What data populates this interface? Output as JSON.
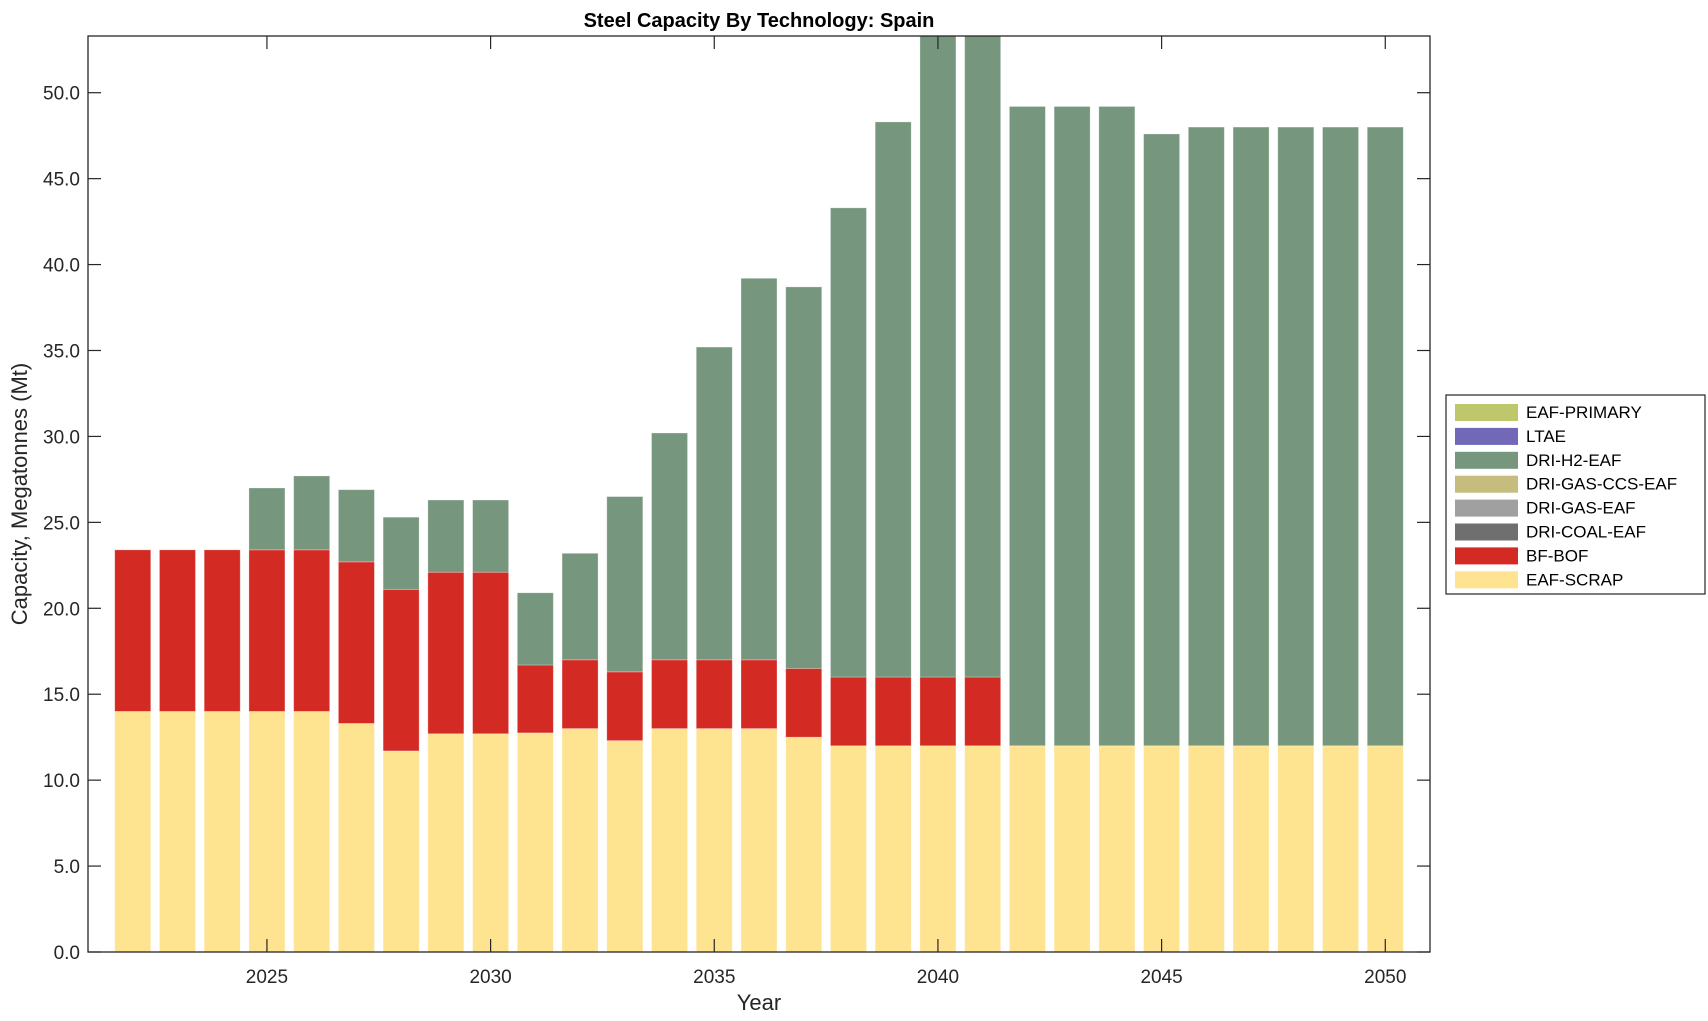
{
  "chart_data": {
    "type": "bar",
    "stacked": true,
    "title": "Steel Capacity By Technology: Spain",
    "xlabel": "Year",
    "ylabel": "Capacity, Megatonnes (Mt)",
    "xlim": [
      2021,
      2051
    ],
    "ylim": [
      0,
      53.3
    ],
    "grid": false,
    "legend_position": "outside-right",
    "x": [
      2022,
      2023,
      2024,
      2025,
      2026,
      2027,
      2028,
      2029,
      2030,
      2031,
      2032,
      2033,
      2034,
      2035,
      2036,
      2037,
      2038,
      2039,
      2040,
      2041,
      2042,
      2043,
      2044,
      2045,
      2046,
      2047,
      2048,
      2049,
      2050
    ],
    "x_ticks": [
      2025,
      2030,
      2035,
      2040,
      2045,
      2050
    ],
    "x_tick_labels": [
      "2025",
      "2030",
      "2035",
      "2040",
      "2045",
      "2050"
    ],
    "y_ticks": [
      0,
      5,
      10,
      15,
      20,
      25,
      30,
      35,
      40,
      45,
      50
    ],
    "y_tick_labels": [
      "0.0",
      "5.0",
      "10.0",
      "15.0",
      "20.0",
      "25.0",
      "30.0",
      "35.0",
      "40.0",
      "45.0",
      "50.0"
    ],
    "series": [
      {
        "name": "EAF-SCRAP",
        "color": "#fee391",
        "values": [
          14,
          14,
          14,
          14,
          14,
          13.3,
          11.7,
          12.7,
          12.7,
          12.75,
          13,
          12.3,
          13,
          13,
          13,
          12.5,
          12,
          12,
          12,
          12,
          12,
          12,
          12,
          12,
          12,
          12,
          12,
          12,
          12
        ]
      },
      {
        "name": "BF-BOF",
        "color": "#d32a24",
        "values": [
          9.4,
          9.4,
          9.4,
          9.4,
          9.4,
          9.4,
          9.4,
          9.4,
          9.4,
          3.95,
          4,
          4,
          4,
          4,
          4,
          4,
          4,
          4,
          4,
          4,
          0,
          0,
          0,
          0,
          0,
          0,
          0,
          0,
          0
        ]
      },
      {
        "name": "DRI-COAL-EAF",
        "color": "#6f6f6f",
        "values": [
          0,
          0,
          0,
          0,
          0,
          0,
          0,
          0,
          0,
          0,
          0,
          0,
          0,
          0,
          0,
          0,
          0,
          0,
          0,
          0,
          0,
          0,
          0,
          0,
          0,
          0,
          0,
          0,
          0
        ]
      },
      {
        "name": "DRI-GAS-EAF",
        "color": "#a0a0a0",
        "values": [
          0,
          0,
          0,
          0,
          0,
          0,
          0,
          0,
          0,
          0,
          0,
          0,
          0,
          0,
          0,
          0,
          0,
          0,
          0,
          0,
          0,
          0,
          0,
          0,
          0,
          0,
          0,
          0,
          0
        ]
      },
      {
        "name": "DRI-GAS-CCS-EAF",
        "color": "#c5bc7e",
        "values": [
          0,
          0,
          0,
          0,
          0,
          0,
          0,
          0,
          0,
          0,
          0,
          0,
          0,
          0,
          0,
          0,
          0,
          0,
          0,
          0,
          0,
          0,
          0,
          0,
          0,
          0,
          0,
          0,
          0
        ]
      },
      {
        "name": "DRI-H2-EAF",
        "color": "#76977d",
        "values": [
          0,
          0,
          0,
          3.6,
          4.3,
          4.2,
          4.2,
          4.2,
          4.2,
          4.2,
          6.2,
          10.2,
          13.2,
          18.2,
          22.2,
          22.2,
          27.3,
          32.3,
          38,
          38,
          37.2,
          37.2,
          37.2,
          35.6,
          36,
          36,
          36,
          36,
          36
        ]
      },
      {
        "name": "LTAE",
        "color": "#7268b8",
        "values": [
          0,
          0,
          0,
          0,
          0,
          0,
          0,
          0,
          0,
          0,
          0,
          0,
          0,
          0,
          0,
          0,
          0,
          0,
          0,
          0,
          0,
          0,
          0,
          0,
          0,
          0,
          0,
          0,
          0
        ]
      },
      {
        "name": "EAF-PRIMARY",
        "color": "#bec76c",
        "values": [
          0,
          0,
          0,
          0,
          0,
          0,
          0,
          0,
          0,
          0,
          0,
          0,
          0,
          0,
          0,
          0,
          0,
          0,
          0,
          0,
          0,
          0,
          0,
          0,
          0,
          0,
          0,
          0,
          0
        ]
      }
    ],
    "legend_entries": [
      "EAF-PRIMARY",
      "LTAE",
      "DRI-H2-EAF",
      "DRI-GAS-CCS-EAF",
      "DRI-GAS-EAF",
      "DRI-COAL-EAF",
      "BF-BOF",
      "EAF-SCRAP"
    ]
  }
}
